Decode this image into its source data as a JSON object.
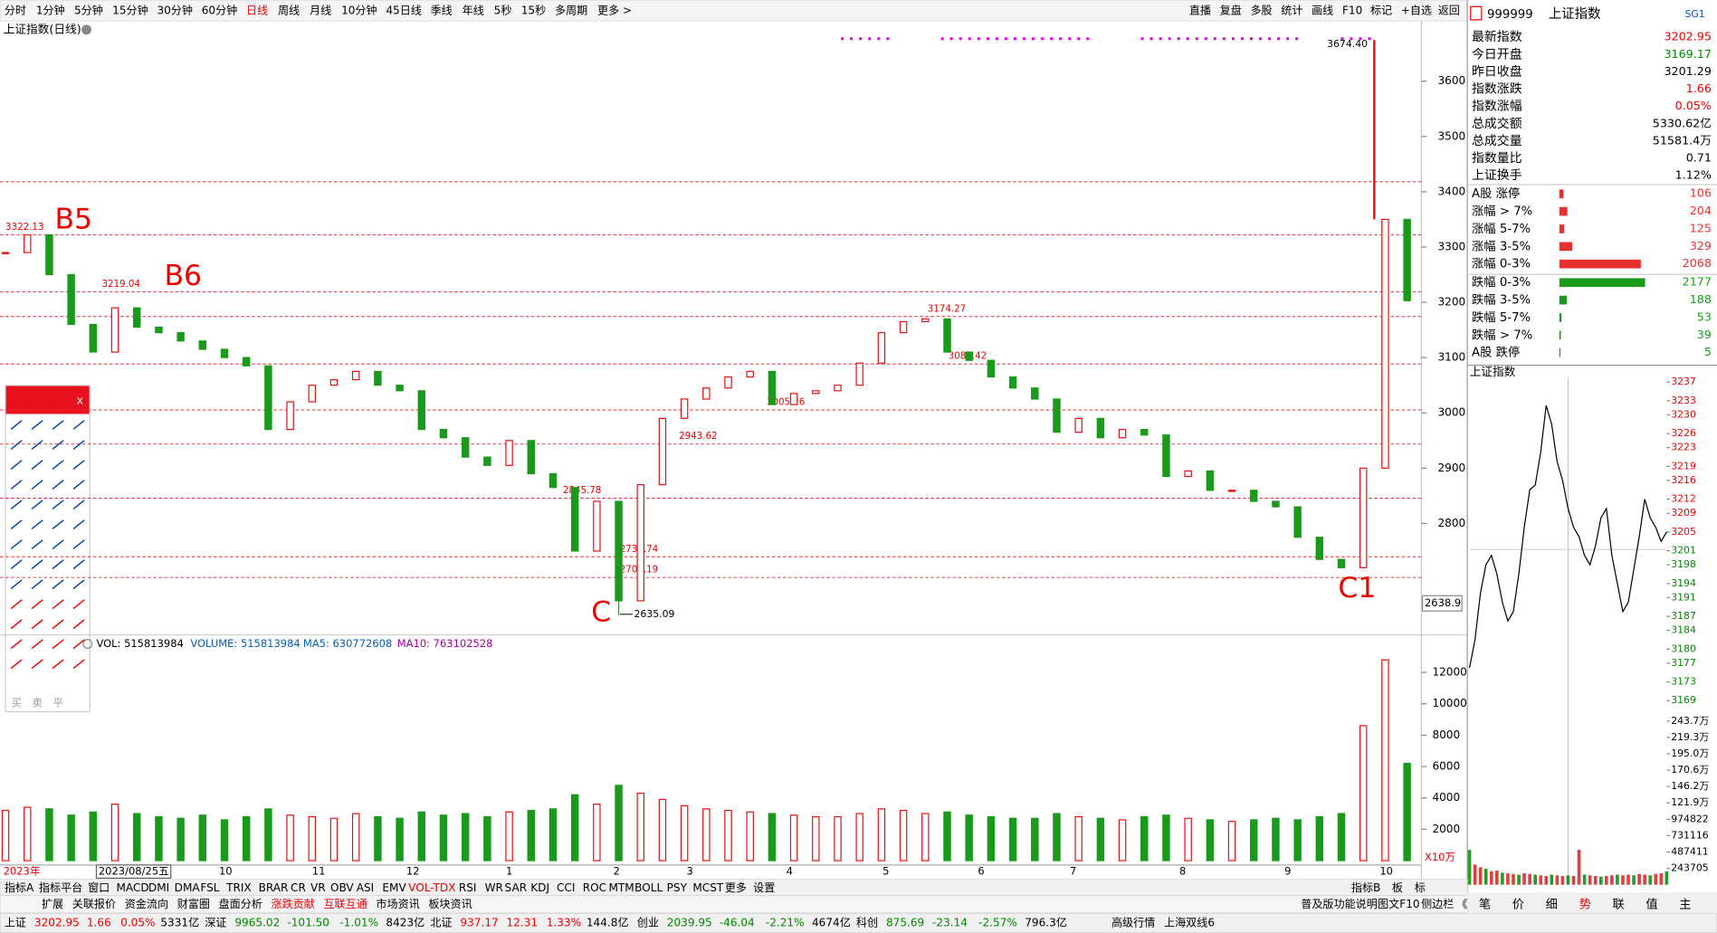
{
  "toolbar": {
    "periods": [
      "分时",
      "1分钟",
      "5分钟",
      "15分钟",
      "30分钟",
      "60分钟",
      "日线",
      "周线",
      "月线",
      "10分钟",
      "45日线",
      "季线",
      "年线",
      "5秒",
      "15秒",
      "多周期",
      "更多 >"
    ],
    "active_period": 6,
    "tools": [
      "直播",
      "复盘",
      "多股",
      "统计",
      "画线",
      "F10",
      "标记",
      "+自选",
      "返回"
    ]
  },
  "chart_title": "上证指数(日线)",
  "price_chart": {
    "type": "candlestick",
    "ylim": [
      2602,
      3707
    ],
    "yticks": [
      2800,
      2900,
      3000,
      3100,
      3200,
      3300,
      3400,
      3500,
      3600
    ],
    "up_color": "#e81010",
    "down_color": "#1a9a1a",
    "level_color": "#e03030",
    "closes": [
      3290,
      3322,
      3250,
      3160,
      3110,
      3190,
      3155,
      3145,
      3130,
      3115,
      3100,
      3085,
      2970,
      3020,
      3050,
      3060,
      3075,
      3050,
      3040,
      2970,
      2955,
      2920,
      2905,
      2950,
      2890,
      2865,
      2750,
      2840,
      2660,
      2870,
      2990,
      3025,
      3045,
      3065,
      3075,
      3015,
      3035,
      3040,
      3050,
      3090,
      3145,
      3165,
      3170,
      3110,
      3095,
      3065,
      3045,
      3025,
      2965,
      2990,
      2955,
      2970,
      2960,
      2885,
      2895,
      2860,
      2860,
      2840,
      2830,
      2775,
      2735,
      2720,
      2900,
      3350,
      3202.95
    ],
    "levels": [
      3322.13,
      3219.04,
      3174.27,
      3088.42,
      3005.26,
      2943.62,
      2845.78,
      2739.74,
      2702.19
    ],
    "unlabeled_levels": [
      3418
    ],
    "high": {
      "value": 3674.4,
      "label": "3674.40"
    },
    "low": 2635.09,
    "readout": 2638.9,
    "annotations": [
      "B5",
      "B6",
      "C",
      "C1"
    ]
  },
  "volume_chart": {
    "type": "bar",
    "header": [
      "VOL: 515813984",
      "VOLUME: 515813984",
      "MA5: 630772608",
      "MA10: 763102528"
    ],
    "unit": "X10万",
    "ylim": [
      0,
      14375
    ],
    "yticks": [
      2000,
      4000,
      6000,
      8000,
      10000,
      12000
    ],
    "values": [
      3200,
      3400,
      3300,
      2900,
      3100,
      3600,
      3000,
      2800,
      2700,
      2900,
      2600,
      2800,
      3300,
      2900,
      2800,
      2700,
      3000,
      2800,
      2700,
      3100,
      2900,
      3000,
      2800,
      3100,
      3200,
      3300,
      4200,
      3600,
      4800,
      4300,
      3900,
      3500,
      3300,
      3200,
      3100,
      3000,
      2900,
      2800,
      2800,
      3000,
      3300,
      3200,
      3000,
      3100,
      2900,
      2800,
      2700,
      2700,
      3000,
      2800,
      2700,
      2600,
      2800,
      2900,
      2700,
      2600,
      2500,
      2600,
      2700,
      2600,
      2800,
      3000,
      8600,
      12800,
      6200
    ]
  },
  "x_labels": [
    "2023年",
    "2023/08/25五",
    "10",
    "11",
    "12",
    "1",
    "2",
    "3",
    "4",
    "5",
    "6",
    "7",
    "8",
    "9",
    "10"
  ],
  "indicator_tabs": [
    "指标A",
    "指标平台",
    "窗口",
    "MACD",
    "DMI",
    "DMA",
    "FSL",
    "TRIX",
    "BRAR",
    "CR",
    "VR",
    "OBV",
    "ASI",
    "EMV",
    "VOL-TDX",
    "RSI",
    "WR",
    "SAR",
    "KDJ",
    "CCI",
    "ROC",
    "MTM",
    "BOLL",
    "PSY",
    "MCST",
    "更多",
    "设置"
  ],
  "indicator_tabs_right": [
    "指标B",
    "板",
    "标"
  ],
  "info_tabs": [
    "扩展",
    "关联报价",
    "资金流向",
    "财富圈",
    "盘面分析",
    "涨跌贡献",
    "互联互通",
    "市场资讯",
    "板块资讯"
  ],
  "info_tabs_right": [
    "普及版功能说明",
    "图文F10",
    "侧边栏",
    "《"
  ],
  "status_bar": [
    {
      "t": "上证",
      "c": "#000"
    },
    {
      "t": "3202.95",
      "c": "#e00"
    },
    {
      "t": "1.66",
      "c": "#e00"
    },
    {
      "t": "0.05%",
      "c": "#e00"
    },
    {
      "t": "5331亿",
      "c": "#000"
    },
    {
      "t": "深证",
      "c": "#000"
    },
    {
      "t": "9965.02",
      "c": "#080"
    },
    {
      "t": "-101.50",
      "c": "#080"
    },
    {
      "t": "-1.01%",
      "c": "#080"
    },
    {
      "t": "8423亿",
      "c": "#000"
    },
    {
      "t": "北证",
      "c": "#000"
    },
    {
      "t": "937.17",
      "c": "#e00"
    },
    {
      "t": "12.31",
      "c": "#e00"
    },
    {
      "t": "1.33%",
      "c": "#e00"
    },
    {
      "t": "144.8亿",
      "c": "#000"
    },
    {
      "t": "创业",
      "c": "#000"
    },
    {
      "t": "2039.95",
      "c": "#080"
    },
    {
      "t": "-46.04",
      "c": "#080"
    },
    {
      "t": "-2.21%",
      "c": "#080"
    },
    {
      "t": "4674亿",
      "c": "#000"
    },
    {
      "t": "科创",
      "c": "#000"
    },
    {
      "t": "875.69",
      "c": "#080"
    },
    {
      "t": "-23.14",
      "c": "#080"
    },
    {
      "t": "-2.57%",
      "c": "#080"
    },
    {
      "t": "796.3亿",
      "c": "#000"
    }
  ],
  "status_right": [
    "高级行情",
    "上海双线6"
  ],
  "quote_panel": {
    "code": "999999",
    "name": "上证指数",
    "badge": "SG1",
    "rows": [
      {
        "label": "最新指数",
        "value": "3202.95",
        "c": "#e00"
      },
      {
        "label": "今日开盘",
        "value": "3169.17",
        "c": "#080"
      },
      {
        "label": "昨日收盘",
        "value": "3201.29",
        "c": "#000"
      },
      {
        "label": "指数涨跌",
        "value": "1.66",
        "c": "#e00"
      },
      {
        "label": "指数涨幅",
        "value": "0.05%",
        "c": "#e00"
      },
      {
        "label": "总成交额",
        "value": "5330.62亿",
        "c": "#000"
      },
      {
        "label": "总成交量",
        "value": "51581.4万",
        "c": "#000"
      },
      {
        "label": "指数量比",
        "value": "0.71",
        "c": "#000"
      },
      {
        "label": "上证换手",
        "value": "1.12%",
        "c": "#000"
      }
    ],
    "breadth_up": [
      {
        "label": "A股 涨停",
        "count": 106
      },
      {
        "label": "涨幅 > 7%",
        "count": 204
      },
      {
        "label": "涨幅 5-7%",
        "count": 125
      },
      {
        "label": "涨幅 3-5%",
        "count": 329
      },
      {
        "label": "涨幅 0-3%",
        "count": 2068
      }
    ],
    "breadth_down": [
      {
        "label": "跌幅 0-3%",
        "count": 2177
      },
      {
        "label": "跌幅 3-5%",
        "count": 188
      },
      {
        "label": "跌幅 5-7%",
        "count": 53
      },
      {
        "label": "跌幅 > 7%",
        "count": 39
      },
      {
        "label": "A股 跌停",
        "count": 5
      }
    ]
  },
  "intraday": {
    "type": "line",
    "title": "上证指数",
    "ylim": [
      3167.8,
      3237.9
    ],
    "yticks": [
      3169,
      3173,
      3177,
      3180,
      3184,
      3187,
      3191,
      3194,
      3198,
      3201,
      3205,
      3209,
      3212,
      3216,
      3219,
      3223,
      3226,
      3230,
      3233,
      3237
    ],
    "prev_close": 3201.29,
    "values": [
      3176,
      3182,
      3192,
      3198,
      3200,
      3196,
      3190,
      3186,
      3188,
      3196,
      3206,
      3214,
      3215,
      3222,
      3232,
      3228,
      3220,
      3216,
      3210,
      3206,
      3204,
      3200,
      3198,
      3202,
      3208,
      3210,
      3200,
      3194,
      3188,
      3190,
      3197,
      3204,
      3212,
      3208,
      3206,
      3203,
      3205
    ],
    "vol_ylim": [
      0,
      2560000
    ],
    "vol_ticks": [
      243705,
      487411,
      731116,
      974822,
      {
        "value": 1219000,
        "label": "121.9万"
      },
      {
        "value": 1462000,
        "label": "146.2万"
      },
      {
        "value": 1706000,
        "label": "170.6万"
      },
      {
        "value": 1950000,
        "label": "195.0万"
      },
      {
        "value": 2193000,
        "label": "219.3万"
      },
      {
        "value": 2437000,
        "label": "243.7万"
      }
    ],
    "volumes": [
      520000,
      300000,
      260000,
      240000,
      200000,
      210000,
      180000,
      170000,
      160000,
      150000,
      170000,
      160000,
      150000,
      140000,
      130000,
      150000,
      140000,
      130000,
      140000,
      130000,
      520000,
      150000,
      140000,
      130000,
      120000,
      130000,
      140000,
      150000,
      140000,
      150000,
      140000,
      160000,
      150000,
      140000,
      160000,
      170000,
      200000
    ],
    "tabs": [
      "笔",
      "价",
      "细",
      "势",
      "联",
      "值",
      "主"
    ],
    "active_tab": 3
  },
  "toolbox": {
    "close": "x",
    "trade": [
      "买",
      "卖",
      "平"
    ]
  }
}
